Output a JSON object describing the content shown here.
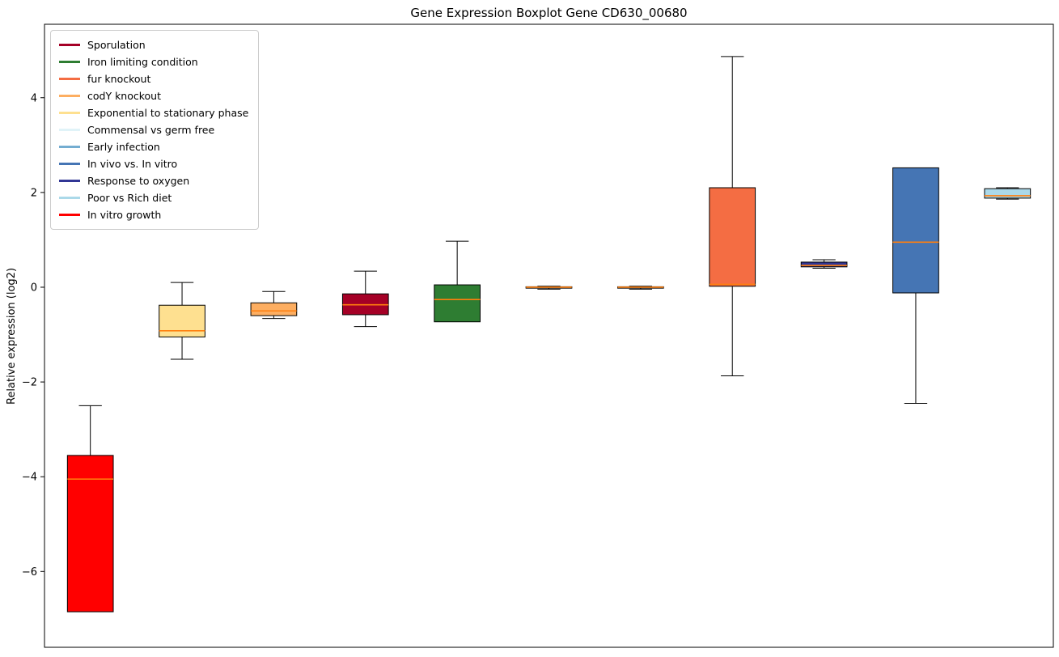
{
  "chart_data": {
    "type": "boxplot",
    "title": "Gene Expression Boxplot Gene CD630_00680",
    "ylabel": "Relative expression (log2)",
    "ylim": [
      -7.6,
      5.55
    ],
    "yticks": [
      4,
      2,
      0,
      -2,
      -4,
      -6
    ],
    "grid": false,
    "legend_position": "upper-left",
    "median_color": "#ff7f0e",
    "box_edge_color": "#000000",
    "legend": [
      {
        "label": "Sporulation",
        "color": "#a50026"
      },
      {
        "label": "Iron limiting condition",
        "color": "#2e7d32"
      },
      {
        "label": "fur knockout",
        "color": "#f46d43"
      },
      {
        "label": "codY knockout",
        "color": "#fdae61"
      },
      {
        "label": "Exponential to stationary phase",
        "color": "#fee090"
      },
      {
        "label": "Commensal vs germ free",
        "color": "#e0f3f8"
      },
      {
        "label": "Early infection",
        "color": "#74add1"
      },
      {
        "label": "In vivo vs. In vitro",
        "color": "#4575b4"
      },
      {
        "label": "Response to oxygen",
        "color": "#313695"
      },
      {
        "label": "Poor vs Rich diet",
        "color": "#abd9e9"
      },
      {
        "label": "In vitro growth",
        "color": "#ff0000"
      }
    ],
    "series": [
      {
        "name": "In vitro growth",
        "color": "#ff0000",
        "whislo": -6.85,
        "q1": -6.85,
        "median": -4.05,
        "q3": -3.55,
        "whishi": -2.5
      },
      {
        "name": "Exponential to stationary phase",
        "color": "#fee090",
        "whislo": -1.52,
        "q1": -1.05,
        "median": -0.92,
        "q3": -0.38,
        "whishi": 0.1
      },
      {
        "name": "codY knockout",
        "color": "#fdae61",
        "whislo": -0.66,
        "q1": -0.6,
        "median": -0.5,
        "q3": -0.33,
        "whishi": -0.09
      },
      {
        "name": "Sporulation",
        "color": "#a50026",
        "whislo": -0.83,
        "q1": -0.58,
        "median": -0.37,
        "q3": -0.14,
        "whishi": 0.34
      },
      {
        "name": "Iron limiting condition",
        "color": "#2e7d32",
        "whislo": -0.73,
        "q1": -0.73,
        "median": -0.26,
        "q3": 0.05,
        "whishi": 0.97
      },
      {
        "name": "Commensal vs germ free",
        "color": "#e0f3f8",
        "whislo": -0.04,
        "q1": -0.02,
        "median": 0.0,
        "q3": 0.01,
        "whishi": 0.02
      },
      {
        "name": "Early infection",
        "color": "#74add1",
        "whislo": -0.04,
        "q1": -0.02,
        "median": 0.0,
        "q3": 0.01,
        "whishi": 0.02
      },
      {
        "name": "fur knockout",
        "color": "#f46d43",
        "whislo": -1.87,
        "q1": 0.02,
        "median": 0.06,
        "q3": 2.1,
        "whishi": 4.87
      },
      {
        "name": "Response to oxygen",
        "color": "#313695",
        "whislo": 0.4,
        "q1": 0.43,
        "median": 0.46,
        "q3": 0.53,
        "whishi": 0.58
      },
      {
        "name": "In vivo vs. In vitro",
        "color": "#4575b4",
        "whislo": -2.45,
        "q1": -0.12,
        "median": 0.95,
        "q3": 2.52,
        "whishi": 2.52
      },
      {
        "name": "Poor vs Rich diet",
        "color": "#abd9e9",
        "whislo": 1.86,
        "q1": 1.88,
        "median": 1.93,
        "q3": 2.08,
        "whishi": 2.1
      }
    ]
  }
}
